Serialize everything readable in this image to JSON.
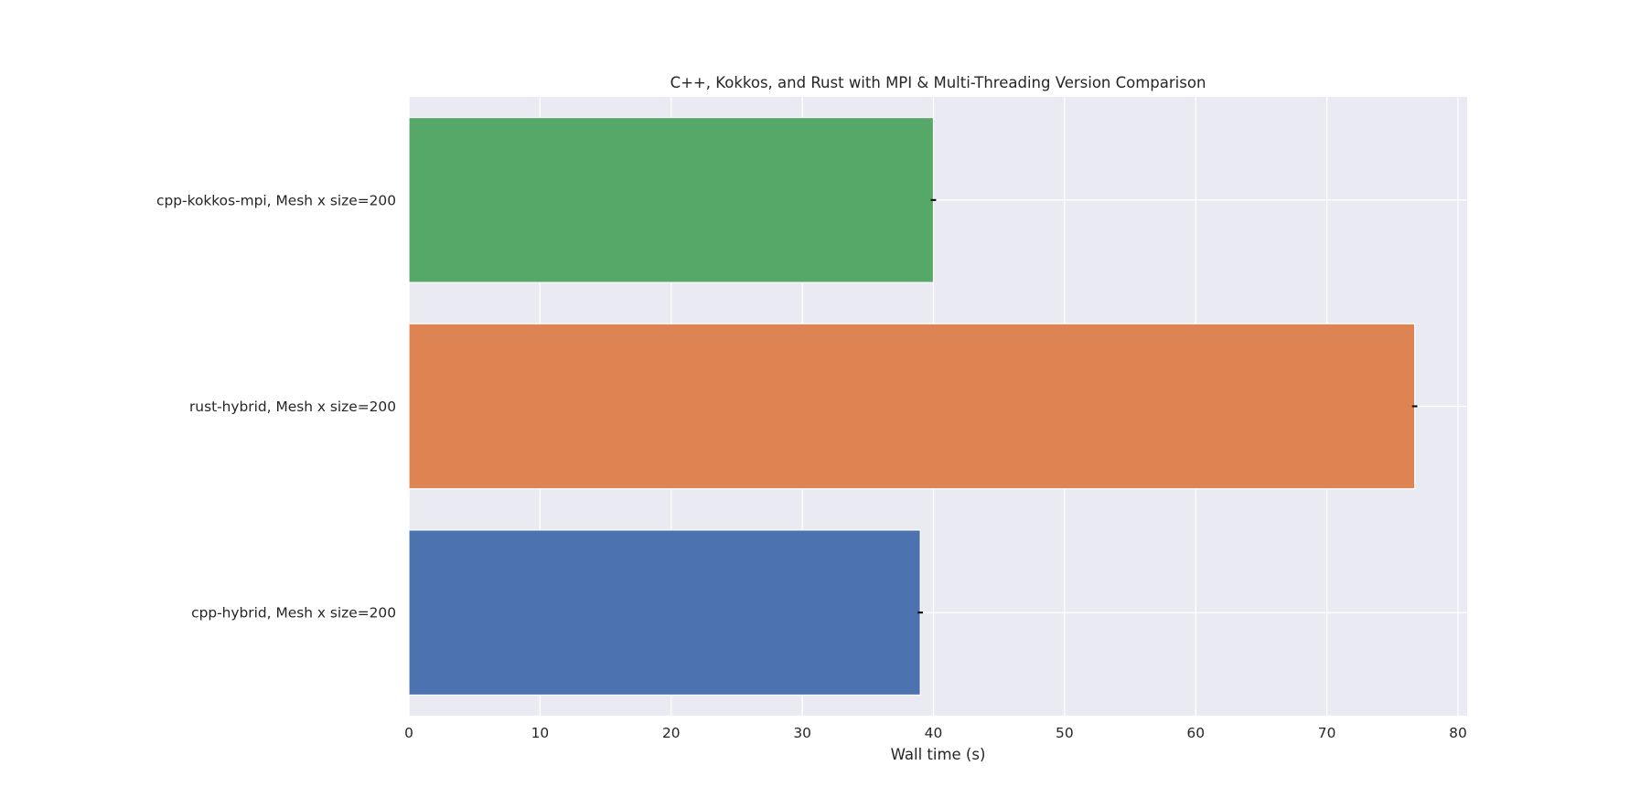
{
  "chart_data": {
    "type": "bar",
    "orientation": "horizontal",
    "title": "C++, Kokkos, and Rust with MPI & Multi-Threading Version Comparison",
    "xlabel": "Wall time (s)",
    "ylabel": "",
    "xlim": [
      0,
      80.7
    ],
    "xticks": [
      0,
      10,
      20,
      30,
      40,
      50,
      60,
      70,
      80
    ],
    "grid": true,
    "legend": "none",
    "categories": [
      "cpp-kokkos-mpi, Mesh x size=200",
      "rust-hybrid, Mesh x size=200",
      "cpp-hybrid, Mesh x size=200"
    ],
    "values": [
      40.0,
      76.7,
      39.0
    ],
    "errors": [
      0.2,
      0.2,
      0.2
    ],
    "colors": [
      "#55a868",
      "#dd8452",
      "#4c72b0"
    ],
    "background_color": "#eaeaf2",
    "grid_color": "#ffffff",
    "error_color": "#000000"
  }
}
